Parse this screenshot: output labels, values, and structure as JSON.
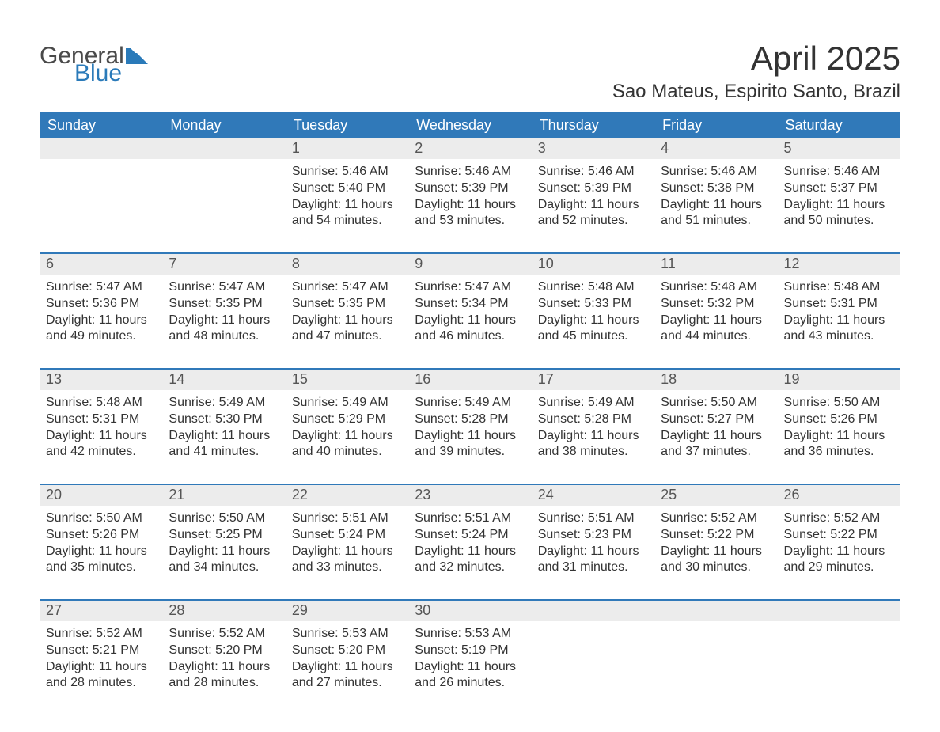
{
  "logo": {
    "word1": "General",
    "word2": "Blue",
    "mark_color": "#2a7ab9",
    "text_gray": "#4a4a4a"
  },
  "title": "April 2025",
  "location": "Sao Mateus, Espirito Santo, Brazil",
  "colors": {
    "header_bg": "#3079b9",
    "header_text": "#ffffff",
    "daynum_bg": "#ececec",
    "daynum_text": "#555555",
    "body_text": "#333333",
    "week_divider": "#3079b9",
    "page_bg": "#ffffff"
  },
  "typography": {
    "title_fontsize": 42,
    "location_fontsize": 24,
    "weekday_fontsize": 18,
    "daynum_fontsize": 18,
    "body_fontsize": 16,
    "font_family": "Segoe UI"
  },
  "weekdays": [
    "Sunday",
    "Monday",
    "Tuesday",
    "Wednesday",
    "Thursday",
    "Friday",
    "Saturday"
  ],
  "labels": {
    "sunrise": "Sunrise:",
    "sunset": "Sunset:",
    "daylight": "Daylight:"
  },
  "weeks": [
    [
      {
        "day": "",
        "sunrise": "",
        "sunset": "",
        "daylight": ""
      },
      {
        "day": "",
        "sunrise": "",
        "sunset": "",
        "daylight": ""
      },
      {
        "day": "1",
        "sunrise": "5:46 AM",
        "sunset": "5:40 PM",
        "daylight": "11 hours and 54 minutes."
      },
      {
        "day": "2",
        "sunrise": "5:46 AM",
        "sunset": "5:39 PM",
        "daylight": "11 hours and 53 minutes."
      },
      {
        "day": "3",
        "sunrise": "5:46 AM",
        "sunset": "5:39 PM",
        "daylight": "11 hours and 52 minutes."
      },
      {
        "day": "4",
        "sunrise": "5:46 AM",
        "sunset": "5:38 PM",
        "daylight": "11 hours and 51 minutes."
      },
      {
        "day": "5",
        "sunrise": "5:46 AM",
        "sunset": "5:37 PM",
        "daylight": "11 hours and 50 minutes."
      }
    ],
    [
      {
        "day": "6",
        "sunrise": "5:47 AM",
        "sunset": "5:36 PM",
        "daylight": "11 hours and 49 minutes."
      },
      {
        "day": "7",
        "sunrise": "5:47 AM",
        "sunset": "5:35 PM",
        "daylight": "11 hours and 48 minutes."
      },
      {
        "day": "8",
        "sunrise": "5:47 AM",
        "sunset": "5:35 PM",
        "daylight": "11 hours and 47 minutes."
      },
      {
        "day": "9",
        "sunrise": "5:47 AM",
        "sunset": "5:34 PM",
        "daylight": "11 hours and 46 minutes."
      },
      {
        "day": "10",
        "sunrise": "5:48 AM",
        "sunset": "5:33 PM",
        "daylight": "11 hours and 45 minutes."
      },
      {
        "day": "11",
        "sunrise": "5:48 AM",
        "sunset": "5:32 PM",
        "daylight": "11 hours and 44 minutes."
      },
      {
        "day": "12",
        "sunrise": "5:48 AM",
        "sunset": "5:31 PM",
        "daylight": "11 hours and 43 minutes."
      }
    ],
    [
      {
        "day": "13",
        "sunrise": "5:48 AM",
        "sunset": "5:31 PM",
        "daylight": "11 hours and 42 minutes."
      },
      {
        "day": "14",
        "sunrise": "5:49 AM",
        "sunset": "5:30 PM",
        "daylight": "11 hours and 41 minutes."
      },
      {
        "day": "15",
        "sunrise": "5:49 AM",
        "sunset": "5:29 PM",
        "daylight": "11 hours and 40 minutes."
      },
      {
        "day": "16",
        "sunrise": "5:49 AM",
        "sunset": "5:28 PM",
        "daylight": "11 hours and 39 minutes."
      },
      {
        "day": "17",
        "sunrise": "5:49 AM",
        "sunset": "5:28 PM",
        "daylight": "11 hours and 38 minutes."
      },
      {
        "day": "18",
        "sunrise": "5:50 AM",
        "sunset": "5:27 PM",
        "daylight": "11 hours and 37 minutes."
      },
      {
        "day": "19",
        "sunrise": "5:50 AM",
        "sunset": "5:26 PM",
        "daylight": "11 hours and 36 minutes."
      }
    ],
    [
      {
        "day": "20",
        "sunrise": "5:50 AM",
        "sunset": "5:26 PM",
        "daylight": "11 hours and 35 minutes."
      },
      {
        "day": "21",
        "sunrise": "5:50 AM",
        "sunset": "5:25 PM",
        "daylight": "11 hours and 34 minutes."
      },
      {
        "day": "22",
        "sunrise": "5:51 AM",
        "sunset": "5:24 PM",
        "daylight": "11 hours and 33 minutes."
      },
      {
        "day": "23",
        "sunrise": "5:51 AM",
        "sunset": "5:24 PM",
        "daylight": "11 hours and 32 minutes."
      },
      {
        "day": "24",
        "sunrise": "5:51 AM",
        "sunset": "5:23 PM",
        "daylight": "11 hours and 31 minutes."
      },
      {
        "day": "25",
        "sunrise": "5:52 AM",
        "sunset": "5:22 PM",
        "daylight": "11 hours and 30 minutes."
      },
      {
        "day": "26",
        "sunrise": "5:52 AM",
        "sunset": "5:22 PM",
        "daylight": "11 hours and 29 minutes."
      }
    ],
    [
      {
        "day": "27",
        "sunrise": "5:52 AM",
        "sunset": "5:21 PM",
        "daylight": "11 hours and 28 minutes."
      },
      {
        "day": "28",
        "sunrise": "5:52 AM",
        "sunset": "5:20 PM",
        "daylight": "11 hours and 28 minutes."
      },
      {
        "day": "29",
        "sunrise": "5:53 AM",
        "sunset": "5:20 PM",
        "daylight": "11 hours and 27 minutes."
      },
      {
        "day": "30",
        "sunrise": "5:53 AM",
        "sunset": "5:19 PM",
        "daylight": "11 hours and 26 minutes."
      },
      {
        "day": "",
        "sunrise": "",
        "sunset": "",
        "daylight": ""
      },
      {
        "day": "",
        "sunrise": "",
        "sunset": "",
        "daylight": ""
      },
      {
        "day": "",
        "sunrise": "",
        "sunset": "",
        "daylight": ""
      }
    ]
  ]
}
